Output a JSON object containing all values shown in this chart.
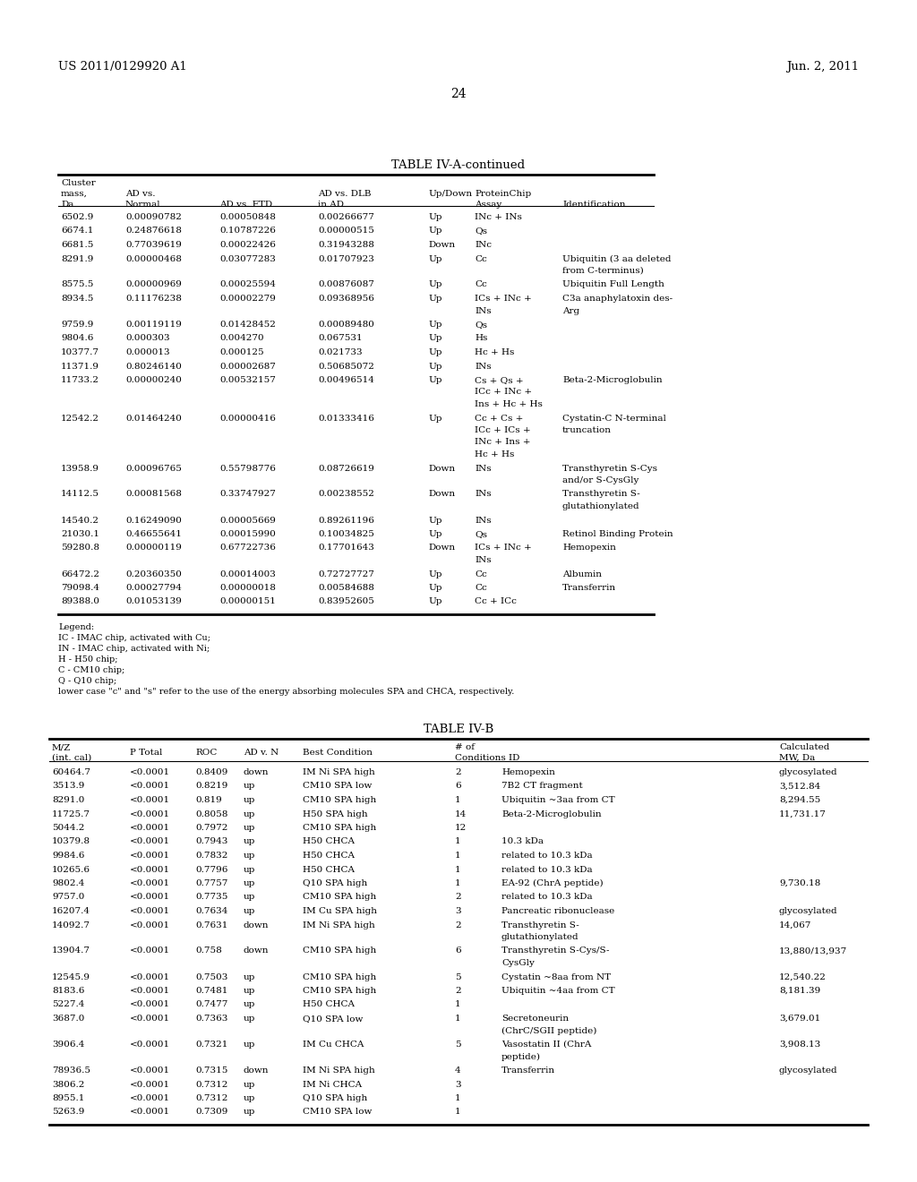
{
  "header_left": "US 2011/0129920 A1",
  "header_right": "Jun. 2, 2011",
  "page_num": "24",
  "table_a_title": "TABLE IV-A-continued",
  "table_a_rows": [
    [
      "6502.9",
      "0.00090782",
      "0.00050848",
      "0.00266677",
      "Up",
      "INc + INs",
      ""
    ],
    [
      "6674.1",
      "0.24876618",
      "0.10787226",
      "0.00000515",
      "Up",
      "Qs",
      ""
    ],
    [
      "6681.5",
      "0.77039619",
      "0.00022426",
      "0.31943288",
      "Down",
      "INc",
      ""
    ],
    [
      "8291.9",
      "0.00000468",
      "0.03077283",
      "0.01707923",
      "Up",
      "Cc",
      "Ubiquitin (3 aa deleted\nfrom C-terminus)"
    ],
    [
      "8575.5",
      "0.00000969",
      "0.00025594",
      "0.00876087",
      "Up",
      "Cc",
      "Ubiquitin Full Length"
    ],
    [
      "8934.5",
      "0.11176238",
      "0.00002279",
      "0.09368956",
      "Up",
      "ICs + INc +\nINs",
      "C3a anaphylatoxin des-\nArg"
    ],
    [
      "9759.9",
      "0.00119119",
      "0.01428452",
      "0.00089480",
      "Up",
      "Qs",
      ""
    ],
    [
      "9804.6",
      "0.000303",
      "0.004270",
      "0.067531",
      "Up",
      "Hs",
      ""
    ],
    [
      "10377.7",
      "0.000013",
      "0.000125",
      "0.021733",
      "Up",
      "Hc + Hs",
      ""
    ],
    [
      "11371.9",
      "0.80246140",
      "0.00002687",
      "0.50685072",
      "Up",
      "INs",
      ""
    ],
    [
      "11733.2",
      "0.00000240",
      "0.00532157",
      "0.00496514",
      "Up",
      "Cs + Qs +\nICc + INc +\nIns + Hc + Hs",
      "Beta-2-Microglobulin"
    ],
    [
      "12542.2",
      "0.01464240",
      "0.00000416",
      "0.01333416",
      "Up",
      "Cc + Cs +\nICc + ICs +\nINc + Ins +\nHc + Hs",
      "Cystatin-C N-terminal\ntruncation"
    ],
    [
      "13958.9",
      "0.00096765",
      "0.55798776",
      "0.08726619",
      "Down",
      "INs",
      "Transthyretin S-Cys\nand/or S-CysGly"
    ],
    [
      "14112.5",
      "0.00081568",
      "0.33747927",
      "0.00238552",
      "Down",
      "INs",
      "Transthyretin S-\nglutathionylated"
    ],
    [
      "14540.2",
      "0.16249090",
      "0.00005669",
      "0.89261196",
      "Up",
      "INs",
      ""
    ],
    [
      "21030.1",
      "0.46655641",
      "0.00015990",
      "0.10034825",
      "Up",
      "Qs",
      "Retinol Binding Protein"
    ],
    [
      "59280.8",
      "0.00000119",
      "0.67722736",
      "0.17701643",
      "Down",
      "ICs + INc +\nINs",
      "Hemopexin"
    ],
    [
      "66472.2",
      "0.20360350",
      "0.00014003",
      "0.72727727",
      "Up",
      "Cc",
      "Albumin"
    ],
    [
      "79098.4",
      "0.00027794",
      "0.00000018",
      "0.00584688",
      "Up",
      "Cc",
      "Transferrin"
    ],
    [
      "89388.0",
      "0.01053139",
      "0.00000151",
      "0.83952605",
      "Up",
      "Cc + ICc",
      ""
    ]
  ],
  "legend_lines": [
    "Legend:",
    "IC - IMAC chip, activated with Cu;",
    "IN - IMAC chip, activated with Ni;",
    "H - H50 chip;",
    "C - CM10 chip;",
    "Q - Q10 chip;",
    "lower case \"c\" and \"s\" refer to the use of the energy absorbing molecules SPA and CHCA, respectively."
  ],
  "table_b_title": "TABLE IV-B",
  "table_b_rows": [
    [
      "60464.7",
      "<0.0001",
      "0.8409",
      "down",
      "IM Ni SPA high",
      "2",
      "Hemopexin",
      "glycosylated"
    ],
    [
      "3513.9",
      "<0.0001",
      "0.8219",
      "up",
      "CM10 SPA low",
      "6",
      "7B2 CT fragment",
      "3,512.84"
    ],
    [
      "8291.0",
      "<0.0001",
      "0.819",
      "up",
      "CM10 SPA high",
      "1",
      "Ubiquitin ~3aa from CT",
      "8,294.55"
    ],
    [
      "11725.7",
      "<0.0001",
      "0.8058",
      "up",
      "H50 SPA high",
      "14",
      "Beta-2-Microglobulin",
      "11,731.17"
    ],
    [
      "5044.2",
      "<0.0001",
      "0.7972",
      "up",
      "CM10 SPA high",
      "12",
      "",
      ""
    ],
    [
      "10379.8",
      "<0.0001",
      "0.7943",
      "up",
      "H50 CHCA",
      "1",
      "10.3 kDa",
      ""
    ],
    [
      "9984.6",
      "<0.0001",
      "0.7832",
      "up",
      "H50 CHCA",
      "1",
      "related to 10.3 kDa",
      ""
    ],
    [
      "10265.6",
      "<0.0001",
      "0.7796",
      "up",
      "H50 CHCA",
      "1",
      "related to 10.3 kDa",
      ""
    ],
    [
      "9802.4",
      "<0.0001",
      "0.7757",
      "up",
      "Q10 SPA high",
      "1",
      "EA-92 (ChrA peptide)",
      "9,730.18"
    ],
    [
      "9757.0",
      "<0.0001",
      "0.7735",
      "up",
      "CM10 SPA high",
      "2",
      "related to 10.3 kDa",
      ""
    ],
    [
      "16207.4",
      "<0.0001",
      "0.7634",
      "up",
      "IM Cu SPA high",
      "3",
      "Pancreatic ribonuclease",
      "glycosylated"
    ],
    [
      "14092.7",
      "<0.0001",
      "0.7631",
      "down",
      "IM Ni SPA high",
      "2",
      "Transthyretin S-\nglutathionylated",
      "14,067"
    ],
    [
      "13904.7",
      "<0.0001",
      "0.758",
      "down",
      "CM10 SPA high",
      "6",
      "Transthyretin S-Cys/S-\nCysGly",
      "13,880/13,937"
    ],
    [
      "12545.9",
      "<0.0001",
      "0.7503",
      "up",
      "CM10 SPA high",
      "5",
      "Cystatin ~8aa from NT",
      "12,540.22"
    ],
    [
      "8183.6",
      "<0.0001",
      "0.7481",
      "up",
      "CM10 SPA high",
      "2",
      "Ubiquitin ~4aa from CT",
      "8,181.39"
    ],
    [
      "5227.4",
      "<0.0001",
      "0.7477",
      "up",
      "H50 CHCA",
      "1",
      "",
      ""
    ],
    [
      "3687.0",
      "<0.0001",
      "0.7363",
      "up",
      "Q10 SPA low",
      "1",
      "Secretoneurin\n(ChrC/SGII peptide)",
      "3,679.01"
    ],
    [
      "3906.4",
      "<0.0001",
      "0.7321",
      "up",
      "IM Cu CHCA",
      "5",
      "Vasostatin II (ChrA\npeptide)",
      "3,908.13"
    ],
    [
      "78936.5",
      "<0.0001",
      "0.7315",
      "down",
      "IM Ni SPA high",
      "4",
      "Transferrin",
      "glycosylated"
    ],
    [
      "3806.2",
      "<0.0001",
      "0.7312",
      "up",
      "IM Ni CHCA",
      "3",
      "",
      ""
    ],
    [
      "8955.1",
      "<0.0001",
      "0.7312",
      "up",
      "Q10 SPA high",
      "1",
      "",
      ""
    ],
    [
      "5263.9",
      "<0.0001",
      "0.7309",
      "up",
      "CM10 SPA low",
      "1",
      "",
      ""
    ]
  ]
}
